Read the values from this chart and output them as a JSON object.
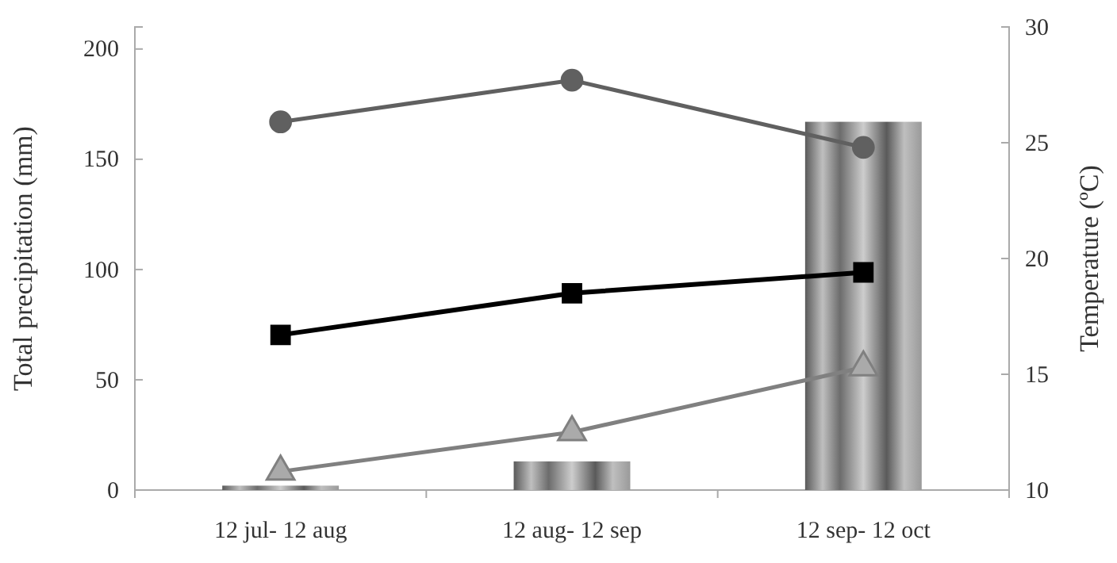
{
  "chart_data": {
    "type": "bar",
    "categories": [
      "12 jul- 12 aug",
      "12 aug- 12 sep",
      "12 sep- 12 oct"
    ],
    "ylabel": "Total  precipitation  (mm)",
    "y2label": "Temperature  (ºC)",
    "ylim": [
      0,
      210
    ],
    "yticks": [
      0,
      50,
      100,
      150,
      200
    ],
    "y2lim": [
      10,
      30
    ],
    "y2ticks": [
      10,
      15,
      20,
      25,
      30
    ],
    "grid": false,
    "series": [
      {
        "color": "#9a9a9a",
        "values": [
          2,
          13,
          167
        ]
      },
      {
        "type": "line",
        "axis": "y2",
        "marker": "circle",
        "color": "#606060",
        "values": [
          25.9,
          27.7,
          24.8
        ]
      },
      {
        "type": "line",
        "axis": "y2",
        "marker": "square",
        "color": "#000000",
        "values": [
          16.7,
          18.5,
          19.4
        ]
      },
      {
        "type": "line",
        "axis": "y2",
        "marker": "triangle",
        "color": "#808080",
        "values": [
          10.8,
          12.5,
          15.3
        ]
      }
    ]
  }
}
